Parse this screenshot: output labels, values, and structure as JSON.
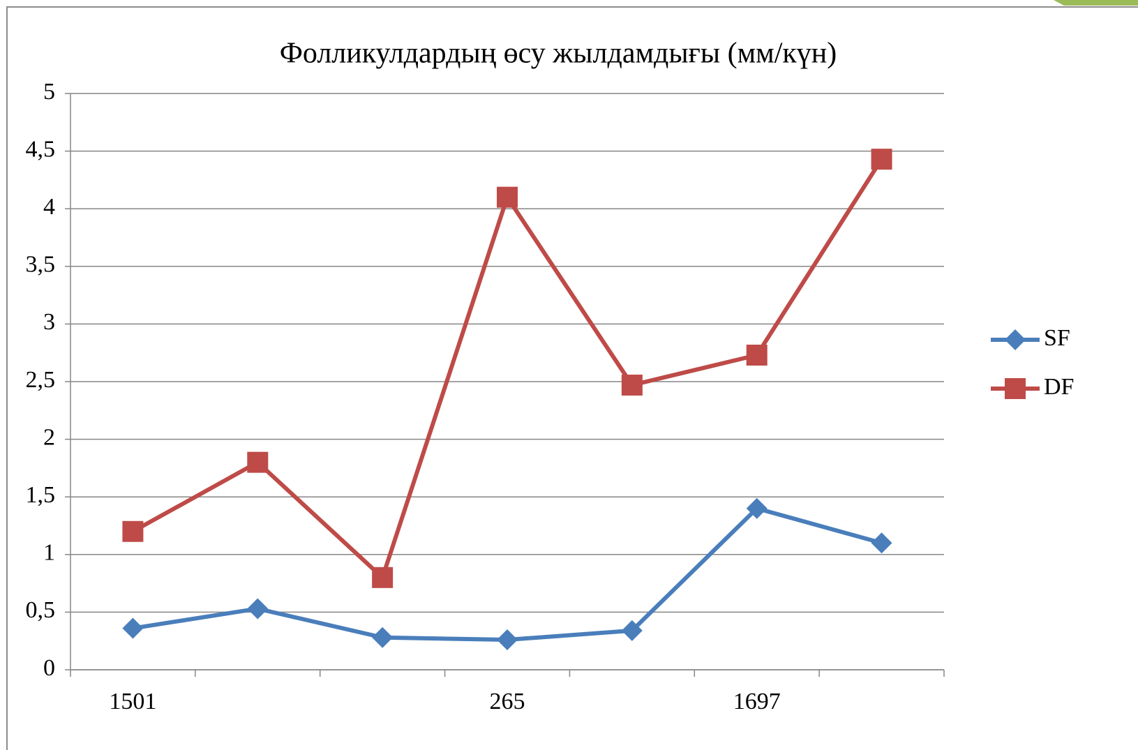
{
  "chart_data": {
    "type": "line",
    "title": "Фолликулдардың өсу жылдамдығы (мм/күн)",
    "categories": [
      "1501",
      null,
      null,
      "265",
      null,
      "1697",
      null
    ],
    "series": [
      {
        "name": "SF",
        "color": "#4a7ebb",
        "marker": "diamond",
        "values": [
          0.36,
          0.53,
          0.28,
          0.26,
          0.34,
          1.4,
          1.1
        ]
      },
      {
        "name": "DF",
        "color": "#be4b48",
        "marker": "square",
        "values": [
          1.2,
          1.8,
          0.8,
          4.1,
          2.47,
          2.73,
          4.43
        ]
      }
    ],
    "ylim": [
      0,
      5
    ],
    "yticks": [
      0,
      {
        "value": 0.5,
        "label": "0,5"
      },
      1,
      {
        "value": 1.5,
        "label": "1,5"
      },
      2,
      {
        "value": 2.5,
        "label": "2,5"
      },
      3,
      {
        "value": 3.5,
        "label": "3,5"
      },
      4,
      {
        "value": 4.5,
        "label": "4,5"
      },
      5
    ],
    "grid": true,
    "legend": "right"
  }
}
